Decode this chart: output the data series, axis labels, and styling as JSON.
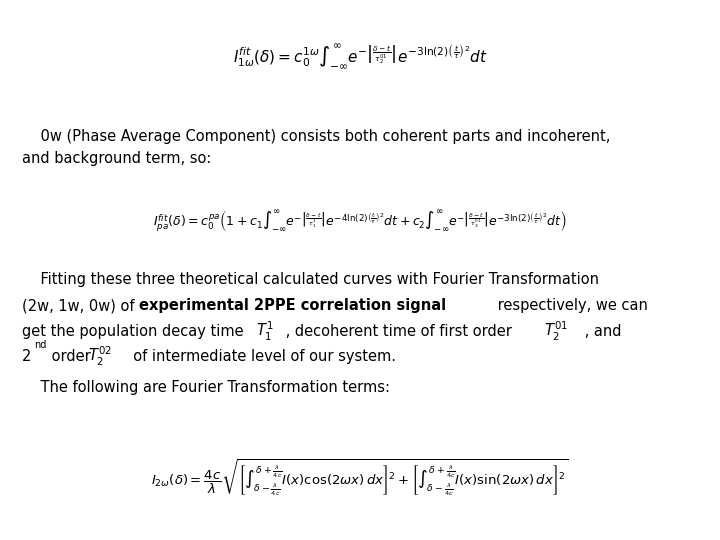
{
  "bg_color": "#ffffff",
  "fig_width": 7.2,
  "fig_height": 5.4,
  "dpi": 100,
  "eq1": "$I_{1\\omega}^{fit}(\\delta) = c_0^{1\\omega}\\int_{-\\infty}^{\\infty} e^{-\\left|\\frac{\\delta - t}{\\tau_2^{01}}\\right|} e^{-3\\ln(2)\\left(\\frac{t}{\\tau}\\right)^2} dt$",
  "eq2": "$I_{pa}^{fit}(\\delta) = c_0^{pa}\\left(1 + c_1\\int_{-\\infty}^{\\infty} e^{-\\left|\\frac{\\delta - t}{\\tau_1^{1}}\\right|} e^{-4\\ln(2)\\left(\\frac{t}{\\tau}\\right)^2} dt + c_2\\int_{-\\infty}^{\\infty} e^{-\\left|\\frac{\\delta - t}{\\tau_3^{01}}\\right|} e^{-3\\ln(2)\\left(\\frac{t}{\\tau}\\right)^2} dt\\right)$",
  "eq3": "$I_{2\\omega}(\\delta) = \\dfrac{4c}{\\lambda}\\sqrt{\\left[\\int_{\\delta - \\frac{\\lambda}{4c}}^{\\delta + \\frac{\\lambda}{4c}} I(x)\\cos(2\\omega x)\\,dx\\right]^2 + \\left[\\int_{\\delta - \\frac{\\lambda}{4c}}^{\\delta + \\frac{\\lambda}{4c}} I(x)\\sin(2\\omega x)\\,dx\\right]^2}$",
  "text1a": "    0w (Phase Average Component) consists both coherent parts and incoherent,",
  "text1b": "and background term, so:",
  "text2a": "    Fitting these three theoretical calculated curves with Fourier Transformation",
  "text2b_normal": "(2w, 1w, 0w) of ",
  "text2b_bold": "experimental 2PPE correlation signal",
  "text2b_end": " respectively, we can",
  "text2c_start": "get the population decay time ",
  "math_T1": "$T_1^{1}$",
  "text2c_mid": " , decoherent time of first order ",
  "math_T2_01": "$T_2^{01}$",
  "text2c_end": " , and",
  "text2d_start": "2",
  "text2d_super": "nd",
  "text2d_mid": " order ",
  "math_T2_02": "$T_2^{02}$",
  "text2d_end": "  of intermediate level of our system.",
  "text3": "    The following are Fourier Transformation terms:",
  "fs_body": 10.5,
  "fs_eq1": 11,
  "fs_eq2": 9,
  "fs_eq3": 9.5,
  "fs_math_inline": 10.5,
  "fs_super": 7
}
